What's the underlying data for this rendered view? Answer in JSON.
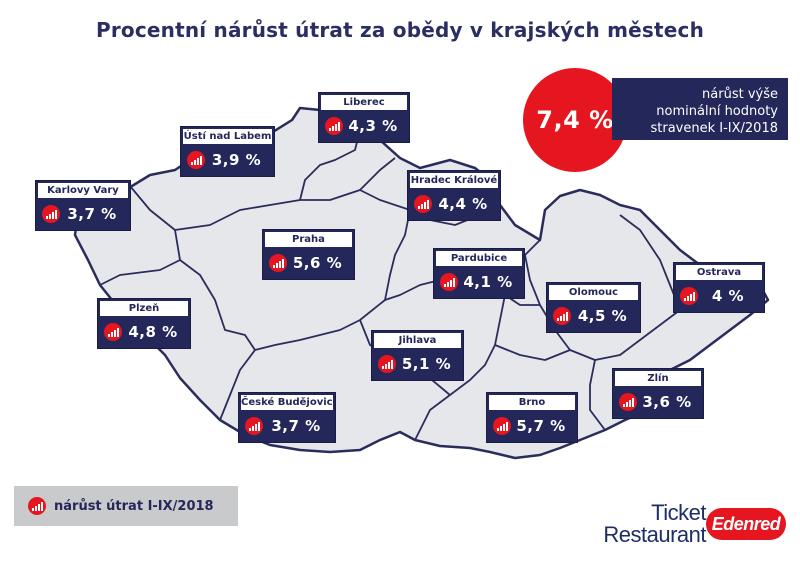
{
  "title": "Procentní nárůst útrat za obědy v krajských městech",
  "headline": {
    "value": "7,4 %",
    "text_line1": "nárůst výše",
    "text_line2": "nominální hodnoty",
    "text_line3": "stravenek I-IX/2018"
  },
  "legend": {
    "label": "nárůst útrat I-IX/2018"
  },
  "colors": {
    "navy": "#24275a",
    "red": "#e5161f",
    "map_fill": "#e6e7ea",
    "map_border": "#2a2d5c"
  },
  "cities": [
    {
      "name": "Liberec",
      "value": "4,3 %"
    },
    {
      "name": "Ústí nad Labem",
      "value": "3,9 %"
    },
    {
      "name": "Karlovy Vary",
      "value": "3,7 %"
    },
    {
      "name": "Hradec Králové",
      "value": "4,4 %"
    },
    {
      "name": "Praha",
      "value": "5,6 %"
    },
    {
      "name": "Pardubice",
      "value": "4,1 %"
    },
    {
      "name": "Ostrava",
      "value": "4 %"
    },
    {
      "name": "Plzeň",
      "value": "4,8 %"
    },
    {
      "name": "Olomouc",
      "value": "4,5 %"
    },
    {
      "name": "Jihlava",
      "value": "5,1 %"
    },
    {
      "name": "Zlín",
      "value": "3,6 %"
    },
    {
      "name": "Brno",
      "value": "5,7 %"
    },
    {
      "name": "České Budějovice",
      "value": "3,7 %"
    }
  ],
  "logo": {
    "line1": "Ticket",
    "line2": "Restaurant",
    "brand": "Edenred"
  },
  "icons": {
    "growth": "growth-chart-icon"
  }
}
